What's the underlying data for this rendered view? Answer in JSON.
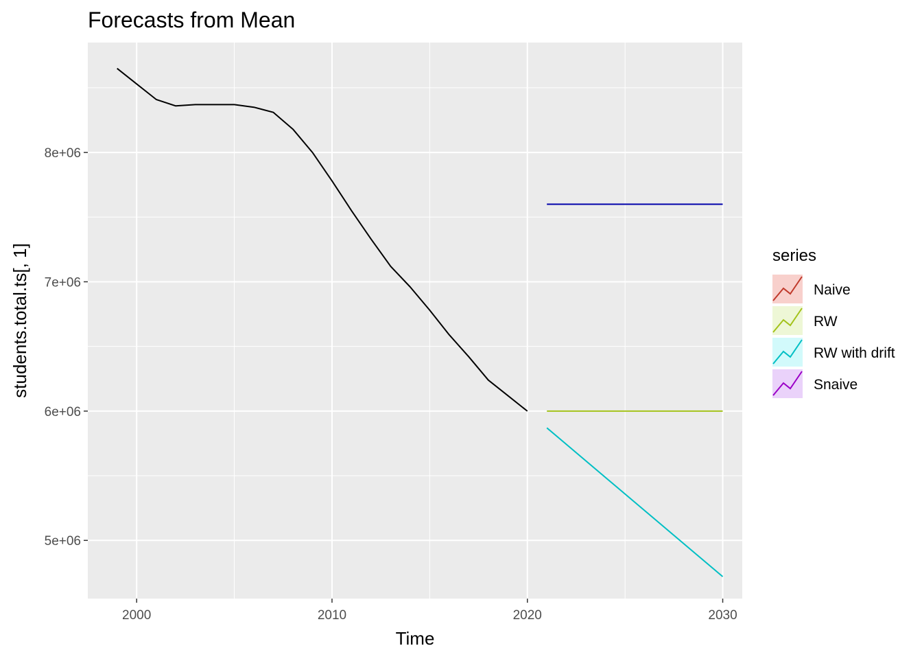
{
  "chart_data": {
    "type": "line",
    "title": "Forecasts from Mean",
    "xlabel": "Time",
    "ylabel": "students.total.ts[, 1]",
    "xlim": [
      1997.5,
      2031
    ],
    "ylim": [
      4550000,
      8850000
    ],
    "x_ticks": [
      2000,
      2010,
      2020,
      2030
    ],
    "x_tick_labels": [
      "2000",
      "2010",
      "2020",
      "2030"
    ],
    "y_ticks": [
      5000000,
      6000000,
      7000000,
      8000000
    ],
    "y_tick_labels": [
      "5e+06",
      "6e+06",
      "7e+06",
      "8e+06"
    ],
    "grid": true,
    "legend_position": "right",
    "legend_title": "series",
    "observed": {
      "color": "#000000",
      "x": [
        1999,
        2000,
        2001,
        2002,
        2003,
        2004,
        2005,
        2006,
        2007,
        2008,
        2009,
        2010,
        2011,
        2012,
        2013,
        2014,
        2015,
        2016,
        2017,
        2018,
        2019,
        2020
      ],
      "y": [
        8650000,
        8530000,
        8410000,
        8360000,
        8370000,
        8370000,
        8370000,
        8350000,
        8310000,
        8180000,
        8000000,
        7780000,
        7550000,
        7330000,
        7120000,
        6960000,
        6780000,
        6590000,
        6420000,
        6240000,
        6120000,
        6000000
      ]
    },
    "mean_forecast": {
      "color": "#0000aa",
      "x": [
        2021,
        2030
      ],
      "y": [
        7600000,
        7600000
      ]
    },
    "series": [
      {
        "name": "Naive",
        "color": "#c0392b",
        "fill": "#f8d0cc",
        "x": [],
        "y": []
      },
      {
        "name": "RW",
        "color": "#a3c21a",
        "fill": "#eef7d6",
        "x": [
          2021,
          2030
        ],
        "y": [
          6000000,
          6000000
        ]
      },
      {
        "name": "RW with drift",
        "color": "#00bfc4",
        "fill": "#d2fafb",
        "x": [
          2021,
          2030
        ],
        "y": [
          5870000,
          4720000
        ]
      },
      {
        "name": "Snaive",
        "color": "#9b00c7",
        "fill": "#ead2fa",
        "x": [],
        "y": []
      }
    ]
  }
}
